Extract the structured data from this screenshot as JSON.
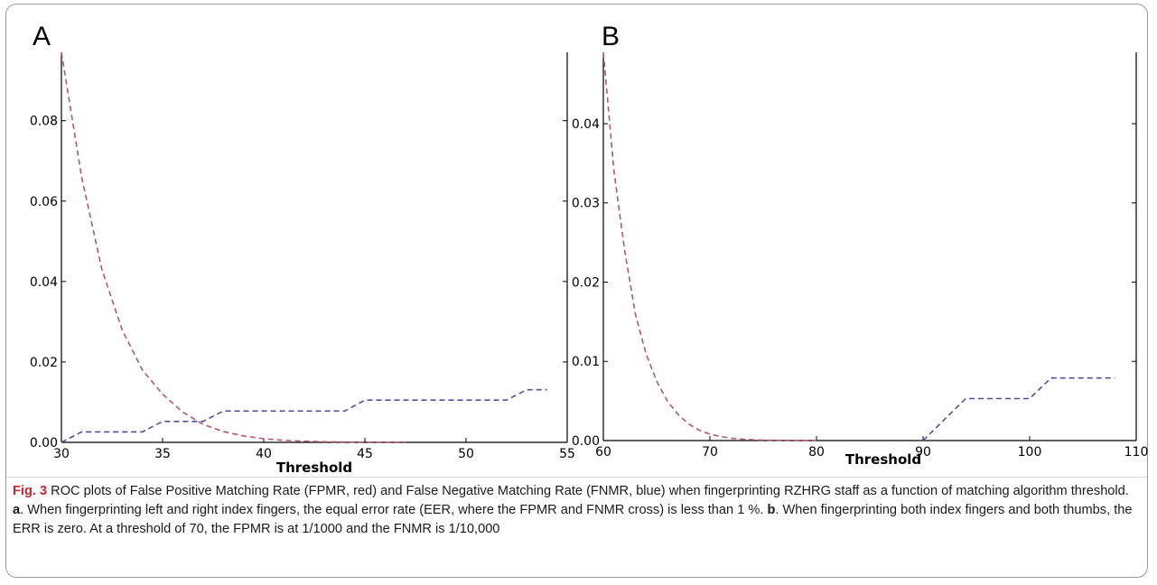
{
  "chart_data": [
    {
      "type": "line",
      "panel_label": "A",
      "xlabel": "Threshold",
      "ylabel": "",
      "xlim": [
        30,
        55
      ],
      "ylim": [
        0,
        0.097
      ],
      "x_ticks": [
        30,
        35,
        40,
        45,
        50,
        55
      ],
      "y_ticks": [
        0.0,
        0.02,
        0.04,
        0.06,
        0.08
      ],
      "x_tick_labels": [
        "30",
        "35",
        "40",
        "45",
        "50",
        "55"
      ],
      "y_tick_labels": [
        "0.00",
        "0.02",
        "0.04",
        "0.06",
        "0.08"
      ],
      "grid": false,
      "series": [
        {
          "color": "#b5566f",
          "style": "dashed",
          "x": [
            30,
            31,
            32,
            33,
            34,
            35,
            36,
            37,
            38,
            39,
            40,
            41,
            42,
            43,
            44,
            45,
            46,
            47
          ],
          "y": [
            0.097,
            0.066,
            0.043,
            0.028,
            0.018,
            0.012,
            0.0075,
            0.0045,
            0.0027,
            0.0016,
            0.0009,
            0.0005,
            0.0003,
            0.00015,
            0.0001,
            5e-05,
            2e-05,
            0.0
          ]
        },
        {
          "color": "#4f4f9a",
          "style": "dashed",
          "x": [
            30,
            31,
            34,
            35,
            37,
            38,
            44,
            45,
            52,
            53,
            54
          ],
          "y": [
            0.0,
            0.0026,
            0.0026,
            0.0052,
            0.0052,
            0.0078,
            0.0078,
            0.0105,
            0.0105,
            0.0131,
            0.0131
          ]
        }
      ]
    },
    {
      "type": "line",
      "panel_label": "B",
      "xlabel": "Threshold",
      "ylabel": "",
      "xlim": [
        60,
        110
      ],
      "ylim": [
        0,
        0.049
      ],
      "x_ticks": [
        60,
        70,
        80,
        90,
        100,
        110
      ],
      "y_ticks": [
        0.0,
        0.01,
        0.02,
        0.03,
        0.04
      ],
      "x_tick_labels": [
        "60",
        "70",
        "80",
        "90",
        "100",
        "110"
      ],
      "y_tick_labels": [
        "0.00",
        "0.01",
        "0.02",
        "0.03",
        "0.04"
      ],
      "grid": false,
      "series": [
        {
          "color": "#b5566f",
          "style": "dashed",
          "x": [
            60,
            61,
            62,
            63,
            64,
            65,
            66,
            67,
            68,
            69,
            70,
            71,
            72,
            73,
            74,
            75,
            76,
            78,
            80
          ],
          "y": [
            0.049,
            0.034,
            0.024,
            0.016,
            0.011,
            0.0075,
            0.005,
            0.0033,
            0.0021,
            0.0013,
            0.0008,
            0.0005,
            0.0003,
            0.00018,
            0.0001,
            6e-05,
            3e-05,
            1e-05,
            0.0
          ]
        },
        {
          "color": "#4f4f9a",
          "style": "dashed",
          "x": [
            90,
            94,
            100,
            102,
            108
          ],
          "y": [
            0.0,
            0.0053,
            0.0053,
            0.0079,
            0.0079
          ]
        }
      ]
    }
  ],
  "caption": {
    "fig_label": "Fig. 3",
    "text_1": " ROC plots of False Positive Matching Rate (FPMR, red) and False Negative Matching Rate (FNMR, blue) when fingerprinting RZHRG staff as a function of matching algorithm threshold. ",
    "bold_a": "a",
    "text_2": ". When fingerprinting left and right index fingers, the equal error rate (EER, where the FPMR and FNMR cross) is less than 1 %. ",
    "bold_b": "b",
    "text_3": ". When fingerprinting both index fingers and both thumbs, the ERR is zero. At a threshold of 70, the FPMR is at 1/1000 and the FNMR is 1/10,000"
  }
}
